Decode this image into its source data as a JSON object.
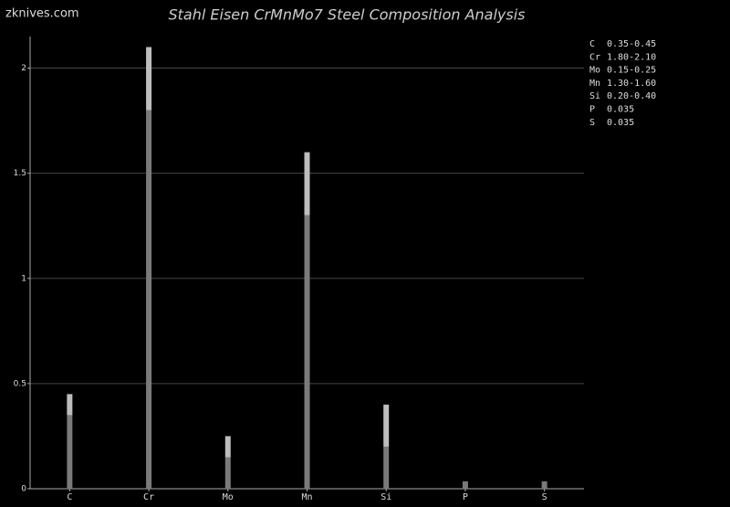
{
  "watermark": "zknives.com",
  "chart_data": {
    "type": "bar",
    "stacked": true,
    "title": "Stahl Eisen CrMnMo7 Steel Composition Analysis",
    "categories": [
      "C",
      "Cr",
      "Mo",
      "Mn",
      "Si",
      "P",
      "S"
    ],
    "series": [
      {
        "color": "#7a7a7a",
        "values": [
          0.35,
          1.8,
          0.15,
          1.3,
          0.2,
          0.035,
          0.035
        ]
      },
      {
        "color": "#bdbdbd",
        "values": [
          0.1,
          0.3,
          0.1,
          0.3,
          0.2,
          null,
          null
        ]
      }
    ],
    "ylim": [
      0,
      2.15
    ],
    "yticks": [
      0,
      0.5,
      1,
      1.5,
      2
    ],
    "grid": true,
    "legend_text": [
      [
        "C",
        "0.35-0.45"
      ],
      [
        "Cr",
        "1.80-2.10"
      ],
      [
        "Mo",
        "0.15-0.25"
      ],
      [
        "Mn",
        "1.30-1.60"
      ],
      [
        "Si",
        "0.20-0.40"
      ],
      [
        "P",
        "0.035"
      ],
      [
        "S",
        "0.035"
      ]
    ]
  }
}
